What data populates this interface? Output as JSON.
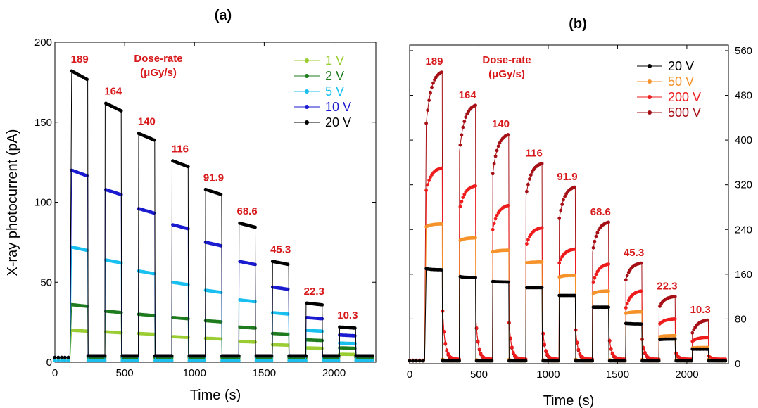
{
  "chart_data": [
    {
      "type": "line",
      "panel_label": "(a)",
      "xlabel": "Time (s)",
      "ylabel": "X-ray photocurrent (pA)",
      "xlim": [
        0,
        2300
      ],
      "ylim": [
        0,
        200
      ],
      "xticks": [
        0,
        500,
        1000,
        1500,
        2000
      ],
      "yticks": [
        0,
        50,
        100,
        150,
        200
      ],
      "y_axis_side": "left",
      "legend_position": "top-right",
      "annotation_header": [
        "Dose-rate",
        "(μGy/s)"
      ],
      "pulse_on_times": [
        [
          120,
          235
        ],
        [
          360,
          475
        ],
        [
          600,
          715
        ],
        [
          840,
          955
        ],
        [
          1080,
          1195
        ],
        [
          1320,
          1435
        ],
        [
          1560,
          1675
        ],
        [
          1800,
          1915
        ],
        [
          2040,
          2155
        ]
      ],
      "dose_rates": [
        "189",
        "164",
        "140",
        "116",
        "91.9",
        "68.6",
        "45.3",
        "22.3",
        "10.3"
      ],
      "series": [
        {
          "name": "1 V",
          "color": "#9acd32",
          "baseline": 2,
          "off_levels": [
            2,
            2,
            2,
            2,
            2,
            2,
            2,
            2,
            2
          ],
          "on_levels": [
            20,
            19,
            18,
            16,
            15,
            13,
            11,
            9,
            5
          ]
        },
        {
          "name": "2 V",
          "color": "#1e7b1e",
          "baseline": 3,
          "off_levels": [
            3,
            3,
            3,
            3,
            3,
            3,
            3,
            3,
            3
          ],
          "on_levels": [
            36,
            32,
            30,
            28,
            26,
            22,
            18,
            14,
            9
          ]
        },
        {
          "name": "5 V",
          "color": "#19bfef",
          "baseline": 1,
          "off_levels": [
            1,
            1,
            1,
            1,
            1,
            1,
            1,
            1,
            1
          ],
          "on_levels": [
            72,
            64,
            57,
            50,
            45,
            39,
            31,
            20,
            12
          ]
        },
        {
          "name": "10 V",
          "color": "#1a1ad0",
          "baseline": 3,
          "off_levels": [
            4,
            4,
            4,
            4,
            4,
            4,
            4,
            4,
            4
          ],
          "on_levels": [
            120,
            108,
            96,
            86,
            75,
            63,
            47,
            28,
            17
          ]
        },
        {
          "name": "20 V",
          "color": "#000000",
          "baseline": 3,
          "off_levels": [
            4,
            4,
            4,
            4,
            4,
            4,
            4,
            4,
            4
          ],
          "on_levels": [
            182,
            162,
            143,
            126,
            108,
            87,
            63,
            37,
            22
          ]
        }
      ]
    },
    {
      "type": "line",
      "panel_label": "(b)",
      "xlabel": "Time (s)",
      "ylabel": "",
      "xlim": [
        0,
        2300
      ],
      "ylim": [
        0,
        570
      ],
      "xticks": [
        0,
        500,
        1000,
        1500,
        2000
      ],
      "yticks": [
        0,
        80,
        160,
        240,
        320,
        400,
        480,
        560
      ],
      "y_axis_side": "right",
      "legend_position": "top-right",
      "annotation_header": [
        "Dose-rate",
        "(μGy/s)"
      ],
      "pulse_on_times": [
        [
          120,
          235
        ],
        [
          360,
          475
        ],
        [
          600,
          715
        ],
        [
          840,
          955
        ],
        [
          1080,
          1195
        ],
        [
          1320,
          1435
        ],
        [
          1560,
          1675
        ],
        [
          1800,
          1915
        ],
        [
          2040,
          2155
        ]
      ],
      "dose_rates": [
        "189",
        "164",
        "140",
        "116",
        "91.9",
        "68.6",
        "45.3",
        "22.3",
        "10.3"
      ],
      "series": [
        {
          "name": "500 V",
          "color": "#a50f15",
          "baseline": 5,
          "off_levels": [
            6,
            6,
            6,
            6,
            6,
            6,
            6,
            6,
            6
          ],
          "on_start": [
            430,
            380,
            340,
            300,
            260,
            200,
            150,
            100,
            55
          ],
          "on_end": [
            522,
            462,
            410,
            358,
            316,
            253,
            180,
            120,
            78
          ],
          "tail_peak": [
            110,
            95,
            85,
            80,
            70,
            60,
            50,
            25,
            15
          ]
        },
        {
          "name": "200 V",
          "color": "#ee1c1c",
          "baseline": 6,
          "off_levels": [
            8,
            8,
            8,
            8,
            8,
            8,
            8,
            8,
            8
          ],
          "on_start": [
            310,
            275,
            240,
            210,
            180,
            140,
            100,
            70,
            40
          ],
          "on_end": [
            350,
            318,
            283,
            243,
            205,
            178,
            130,
            80,
            47
          ],
          "tail_peak": [
            110,
            95,
            85,
            80,
            70,
            60,
            50,
            25,
            15
          ]
        },
        {
          "name": "50 V",
          "color": "#f5922a",
          "baseline": 5,
          "off_levels": [
            5,
            5,
            5,
            5,
            5,
            5,
            5,
            5,
            5
          ],
          "on_start": [
            245,
            220,
            200,
            180,
            155,
            125,
            90,
            48,
            28
          ],
          "on_end": [
            250,
            225,
            203,
            182,
            158,
            130,
            93,
            50,
            29
          ],
          "tail_peak": [
            8,
            8,
            8,
            8,
            8,
            8,
            8,
            8,
            8
          ]
        },
        {
          "name": "20 V",
          "color": "#000000",
          "baseline": 5,
          "off_levels": [
            5,
            5,
            5,
            5,
            5,
            5,
            5,
            5,
            5
          ],
          "on_start": [
            170,
            156,
            147,
            136,
            122,
            101,
            72,
            43,
            26
          ],
          "on_end": [
            168,
            154,
            146,
            136,
            122,
            101,
            71,
            44,
            26
          ],
          "tail_peak": [
            5,
            5,
            5,
            5,
            5,
            5,
            5,
            5,
            5
          ]
        }
      ]
    }
  ]
}
